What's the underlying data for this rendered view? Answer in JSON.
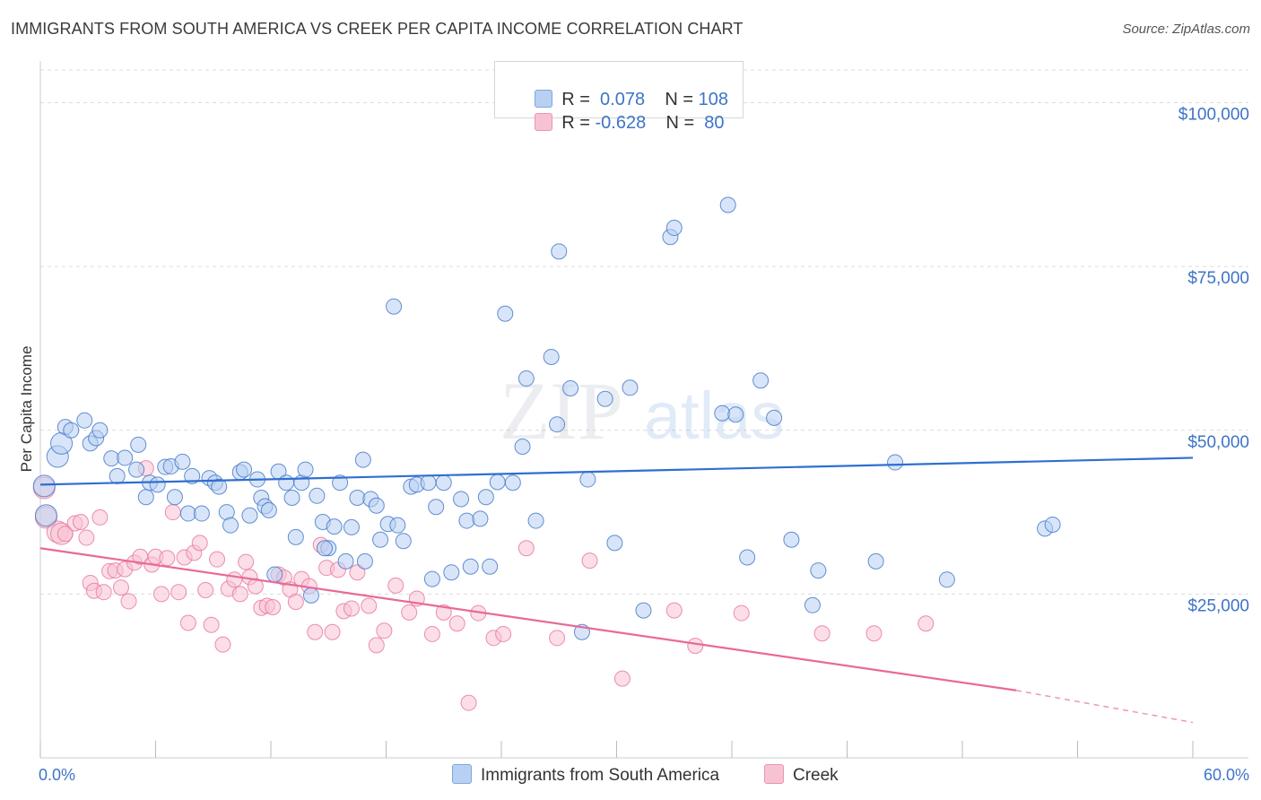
{
  "header": {
    "title": "IMMIGRANTS FROM SOUTH AMERICA VS CREEK PER CAPITA INCOME CORRELATION CHART",
    "source": "Source: ZipAtlas.com"
  },
  "colors": {
    "blue": "#3d74c7",
    "blue_fill": "#b8d0f2",
    "blue_line": "#2f6fd0",
    "pink": "#e8739a",
    "pink_fill": "#f7c3d3",
    "pink_line": "#e8699a",
    "grid": "#dddddd"
  },
  "legend": {
    "rows": [
      {
        "r_label": "R =",
        "r_value": "0.078",
        "n_label": "N =",
        "n_value": "108",
        "color": "#b8d0f2"
      },
      {
        "r_label": "R =",
        "r_value": "-0.628",
        "n_label": "N =",
        "n_value": "80",
        "color": "#f7c3d3"
      }
    ]
  },
  "bottom_legend": {
    "items": [
      {
        "label": "Immigrants from South America",
        "color": "#b8d0f2"
      },
      {
        "label": "Creek",
        "color": "#f7c3d3"
      }
    ]
  },
  "watermark": {
    "zip": "ZIP",
    "atlas": "atlas"
  },
  "chart_data": {
    "type": "scatter",
    "title": "IMMIGRANTS FROM SOUTH AMERICA VS CREEK PER CAPITA INCOME CORRELATION CHART",
    "xlabel": "",
    "ylabel": "Per Capita Income",
    "xlim": [
      0,
      60
    ],
    "ylim": [
      0,
      105000
    ],
    "x_tick_labels": [
      "0.0%",
      "60.0%"
    ],
    "y_tick_labels": [
      {
        "value": 25000,
        "label": "$25,000"
      },
      {
        "value": 50000,
        "label": "$50,000"
      },
      {
        "value": 75000,
        "label": "$75,000"
      },
      {
        "value": 100000,
        "label": "$100,000"
      }
    ],
    "grid": "horizontal dashed",
    "legend_position": "top-center",
    "series": [
      {
        "name": "Immigrants from South America",
        "color": "#3d74c7",
        "trend": {
          "x": [
            0,
            60
          ],
          "y": [
            41700,
            45800
          ]
        },
        "points": [
          [
            0.2,
            41500
          ],
          [
            0.3,
            37000
          ],
          [
            0.9,
            46000
          ],
          [
            1.1,
            48000
          ],
          [
            1.3,
            50500
          ],
          [
            1.6,
            50000
          ],
          [
            2.3,
            51500
          ],
          [
            2.6,
            48000
          ],
          [
            2.9,
            48800
          ],
          [
            3.1,
            50000
          ],
          [
            3.7,
            45700
          ],
          [
            4.0,
            43000
          ],
          [
            4.4,
            45800
          ],
          [
            5.0,
            44000
          ],
          [
            5.1,
            47800
          ],
          [
            5.5,
            39800
          ],
          [
            5.7,
            42000
          ],
          [
            6.1,
            41700
          ],
          [
            6.5,
            44400
          ],
          [
            6.8,
            44500
          ],
          [
            7.4,
            45200
          ],
          [
            7.0,
            39800
          ],
          [
            7.7,
            37300
          ],
          [
            7.9,
            43000
          ],
          [
            8.4,
            37300
          ],
          [
            8.8,
            42700
          ],
          [
            9.1,
            42000
          ],
          [
            9.3,
            41400
          ],
          [
            9.7,
            37500
          ],
          [
            9.9,
            35500
          ],
          [
            10.4,
            43600
          ],
          [
            10.6,
            44000
          ],
          [
            10.9,
            37000
          ],
          [
            11.3,
            42500
          ],
          [
            11.5,
            39700
          ],
          [
            11.7,
            38400
          ],
          [
            11.9,
            37800
          ],
          [
            12.2,
            28000
          ],
          [
            12.4,
            43700
          ],
          [
            12.8,
            42000
          ],
          [
            13.1,
            39700
          ],
          [
            13.3,
            33700
          ],
          [
            13.6,
            42000
          ],
          [
            13.8,
            44000
          ],
          [
            14.1,
            24800
          ],
          [
            14.4,
            40000
          ],
          [
            14.7,
            36000
          ],
          [
            15.0,
            32000
          ],
          [
            15.3,
            35300
          ],
          [
            15.6,
            42000
          ],
          [
            15.9,
            30000
          ],
          [
            16.2,
            35200
          ],
          [
            16.5,
            39700
          ],
          [
            16.9,
            30000
          ],
          [
            17.2,
            39500
          ],
          [
            17.5,
            38500
          ],
          [
            17.7,
            33300
          ],
          [
            18.1,
            35700
          ],
          [
            18.6,
            35500
          ],
          [
            18.9,
            33100
          ],
          [
            19.3,
            41400
          ],
          [
            19.6,
            41700
          ],
          [
            20.2,
            42000
          ],
          [
            20.4,
            27300
          ],
          [
            20.6,
            38300
          ],
          [
            21.0,
            42000
          ],
          [
            21.4,
            28300
          ],
          [
            21.9,
            39500
          ],
          [
            22.2,
            36200
          ],
          [
            22.4,
            29200
          ],
          [
            22.9,
            36500
          ],
          [
            23.2,
            39800
          ],
          [
            23.4,
            29200
          ],
          [
            23.8,
            42100
          ],
          [
            24.6,
            42000
          ],
          [
            25.1,
            47500
          ],
          [
            25.3,
            57900
          ],
          [
            25.8,
            36200
          ],
          [
            26.6,
            61200
          ],
          [
            26.9,
            50900
          ],
          [
            27.6,
            56400
          ],
          [
            28.2,
            19200
          ],
          [
            28.5,
            42500
          ],
          [
            29.4,
            54800
          ],
          [
            29.9,
            32800
          ],
          [
            30.7,
            56500
          ],
          [
            31.4,
            22500
          ],
          [
            35.5,
            52600
          ],
          [
            36.2,
            52400
          ],
          [
            36.8,
            30600
          ],
          [
            37.5,
            57600
          ],
          [
            38.2,
            51900
          ],
          [
            39.1,
            33300
          ],
          [
            40.5,
            28600
          ],
          [
            40.2,
            23300
          ],
          [
            43.5,
            30000
          ],
          [
            44.5,
            45100
          ],
          [
            47.2,
            27200
          ],
          [
            52.3,
            35000
          ],
          [
            52.7,
            35600
          ],
          [
            14.8,
            32000
          ],
          [
            16.8,
            45500
          ],
          [
            18.4,
            68900
          ],
          [
            24.2,
            67800
          ],
          [
            27.0,
            77300
          ],
          [
            32.8,
            79500
          ],
          [
            33.0,
            80900
          ],
          [
            35.8,
            84400
          ]
        ]
      },
      {
        "name": "Creek",
        "color": "#e8739a",
        "trend": {
          "x": [
            0,
            50.8
          ],
          "y": [
            32000,
            10300
          ],
          "dash_to": [
            60,
            5400
          ]
        },
        "points": [
          [
            0.2,
            41200
          ],
          [
            0.3,
            36700
          ],
          [
            0.9,
            34500
          ],
          [
            1.1,
            34200
          ],
          [
            1.3,
            34200
          ],
          [
            1.8,
            35800
          ],
          [
            2.1,
            36000
          ],
          [
            2.4,
            33600
          ],
          [
            2.6,
            26700
          ],
          [
            2.8,
            25500
          ],
          [
            3.1,
            36700
          ],
          [
            3.3,
            25300
          ],
          [
            3.6,
            28500
          ],
          [
            3.9,
            28600
          ],
          [
            4.2,
            26000
          ],
          [
            4.4,
            28800
          ],
          [
            4.6,
            23900
          ],
          [
            4.9,
            29800
          ],
          [
            5.2,
            30700
          ],
          [
            5.5,
            44200
          ],
          [
            5.8,
            29500
          ],
          [
            6.0,
            30700
          ],
          [
            6.3,
            25000
          ],
          [
            6.6,
            30500
          ],
          [
            6.9,
            37500
          ],
          [
            7.2,
            25300
          ],
          [
            7.5,
            30600
          ],
          [
            7.7,
            20600
          ],
          [
            8.0,
            31300
          ],
          [
            8.3,
            32800
          ],
          [
            8.6,
            25600
          ],
          [
            8.9,
            20300
          ],
          [
            9.2,
            30300
          ],
          [
            9.5,
            17300
          ],
          [
            9.8,
            25800
          ],
          [
            10.1,
            27200
          ],
          [
            10.4,
            25000
          ],
          [
            10.7,
            29900
          ],
          [
            10.9,
            27600
          ],
          [
            11.2,
            26200
          ],
          [
            11.5,
            22900
          ],
          [
            11.8,
            23200
          ],
          [
            12.1,
            23000
          ],
          [
            12.4,
            28000
          ],
          [
            12.7,
            27500
          ],
          [
            13.0,
            25700
          ],
          [
            13.3,
            23800
          ],
          [
            13.6,
            27300
          ],
          [
            14.0,
            26200
          ],
          [
            14.3,
            19200
          ],
          [
            14.6,
            32500
          ],
          [
            14.9,
            29000
          ],
          [
            15.2,
            19200
          ],
          [
            15.5,
            28700
          ],
          [
            15.8,
            22400
          ],
          [
            16.2,
            22800
          ],
          [
            16.5,
            28300
          ],
          [
            17.1,
            23200
          ],
          [
            17.5,
            17200
          ],
          [
            17.9,
            19400
          ],
          [
            18.5,
            26300
          ],
          [
            19.2,
            22200
          ],
          [
            19.6,
            24300
          ],
          [
            20.4,
            18900
          ],
          [
            21.0,
            22200
          ],
          [
            21.7,
            20500
          ],
          [
            22.3,
            8400
          ],
          [
            22.8,
            22100
          ],
          [
            23.6,
            18300
          ],
          [
            24.1,
            18900
          ],
          [
            25.3,
            32000
          ],
          [
            26.9,
            18300
          ],
          [
            28.6,
            30100
          ],
          [
            30.3,
            12100
          ],
          [
            33.0,
            22500
          ],
          [
            34.1,
            17100
          ],
          [
            36.5,
            22100
          ],
          [
            40.7,
            19000
          ],
          [
            43.4,
            19000
          ],
          [
            46.1,
            20500
          ]
        ]
      }
    ]
  }
}
